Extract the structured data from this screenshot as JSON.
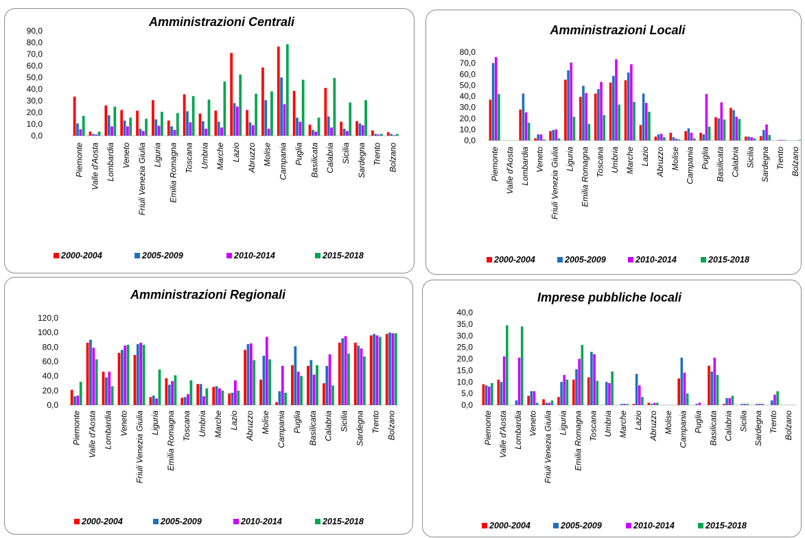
{
  "legend_labels": [
    "2000-2004",
    "2005-2009",
    "2010-2014",
    "2015-2018"
  ],
  "colors": [
    "#ff0000",
    "#1f6fbf",
    "#cc00ff",
    "#00a651"
  ],
  "chart_data": [
    {
      "type": "bar",
      "title": "Amministrazioni Centrali",
      "ylim": [
        0,
        90
      ],
      "yticks": [
        "0,0",
        "10,0",
        "20,0",
        "30,0",
        "40,0",
        "50,0",
        "60,0",
        "70,0",
        "80,0",
        "90,0"
      ],
      "grid": false,
      "legend_position": "bottom",
      "categories": [
        "Piemonte",
        "Valle d'Aosta",
        "Lombardia",
        "Veneto",
        "Friuli Venezia Giulia",
        "Liguria",
        "Emilia Romagna",
        "Toscana",
        "Umbria",
        "Marche",
        "Lazio",
        "Abruzzo",
        "Molise",
        "Campania",
        "Puglia",
        "Basilicata",
        "Calabria",
        "Sicilia",
        "Sardegna",
        "Trento",
        "Bolzano"
      ],
      "series": [
        {
          "name": "2000-2004",
          "values": [
            33.5,
            3.5,
            26,
            22,
            21.5,
            30.5,
            13,
            35.5,
            19,
            21.5,
            71,
            22,
            58.5,
            76.5,
            38.5,
            9.5,
            41,
            12,
            12.5,
            4.5,
            3
          ]
        },
        {
          "name": "2005-2009",
          "values": [
            10.5,
            1.5,
            17.5,
            13,
            6,
            14,
            8,
            21,
            12.5,
            12,
            28,
            11.5,
            30.5,
            50,
            15.5,
            5,
            16.5,
            6,
            10.5,
            1.5,
            1.5
          ]
        },
        {
          "name": "2010-2014",
          "values": [
            5.5,
            1,
            8,
            8,
            4,
            8.5,
            5,
            11.5,
            6,
            7,
            25,
            9,
            6,
            27,
            12,
            3.5,
            7,
            4,
            9,
            1,
            0.5
          ]
        },
        {
          "name": "2015-2018",
          "values": [
            17,
            3.5,
            25,
            15.5,
            14.5,
            20.5,
            19.5,
            34,
            31,
            46.5,
            52.5,
            36,
            38,
            78.5,
            48,
            15.5,
            49.5,
            28.5,
            30.5,
            1.5,
            1.5
          ]
        }
      ]
    },
    {
      "type": "bar",
      "title": "Amministrazioni Locali",
      "ylim": [
        0,
        80
      ],
      "yticks": [
        "0,0",
        "10,0",
        "20,0",
        "30,0",
        "40,0",
        "50,0",
        "60,0",
        "70,0",
        "80,0"
      ],
      "grid": false,
      "legend_position": "bottom",
      "categories": [
        "Piemonte",
        "Valle d'Aosta",
        "Lombardia",
        "Veneto",
        "Friuli Venezia Giulia",
        "Liguria",
        "Emilia Romagna",
        "Toscana",
        "Umbria",
        "Marche",
        "Lazio",
        "Abruzzo",
        "Molise",
        "Campania",
        "Puglia",
        "Basilicata",
        "Calabria",
        "Sicilia",
        "Sardegna",
        "Trento",
        "Bolzano"
      ],
      "series": [
        {
          "name": "2000-2004",
          "values": [
            37,
            0,
            28,
            2,
            8.5,
            55,
            39.5,
            42.5,
            52.5,
            54.5,
            14,
            3.5,
            7,
            8.5,
            7,
            21,
            29.5,
            3.5,
            4,
            0,
            0
          ]
        },
        {
          "name": "2005-2009",
          "values": [
            70,
            0,
            42.5,
            5.5,
            9.5,
            63.5,
            49.5,
            46.5,
            58.5,
            61.5,
            42.5,
            5.5,
            3,
            11,
            5.5,
            20,
            27.5,
            3.5,
            9.5,
            0.5,
            0
          ]
        },
        {
          "name": "2010-2014",
          "values": [
            75.5,
            0,
            25.5,
            5.5,
            10,
            70.5,
            43,
            53,
            73.5,
            69,
            34,
            6,
            1.5,
            7,
            42,
            34.5,
            21.5,
            3,
            14.5,
            0.5,
            0
          ]
        },
        {
          "name": "2015-2018",
          "values": [
            42,
            0,
            16,
            1,
            2,
            21.5,
            15,
            23,
            32.5,
            35,
            26,
            3,
            1,
            2,
            12.5,
            19,
            19.5,
            2,
            5,
            0.5,
            0.5
          ]
        }
      ]
    },
    {
      "type": "bar",
      "title": "Amministrazioni Regionali",
      "ylim": [
        0,
        120
      ],
      "yticks": [
        "0,0",
        "20,0",
        "40,0",
        "60,0",
        "80,0",
        "100,0",
        "120,0"
      ],
      "grid": false,
      "legend_position": "bottom",
      "categories": [
        "Piemonte",
        "Valle d'Aosta",
        "Lombardia",
        "Veneto",
        "Friuli Venezia Giulia",
        "Liguria",
        "Emilia Romagna",
        "Toscana",
        "Umbria",
        "Marche",
        "Lazio",
        "Abruzzo",
        "Molise",
        "Campania",
        "Puglia",
        "Basilicata",
        "Calabria",
        "Sicilia",
        "Sardegna",
        "Trento",
        "Bolzano"
      ],
      "series": [
        {
          "name": "2000-2004",
          "values": [
            21,
            86,
            46,
            72,
            69,
            11,
            37,
            10,
            29,
            25,
            16,
            76,
            35,
            4,
            55,
            54,
            30,
            86,
            86,
            96,
            98
          ]
        },
        {
          "name": "2005-2009",
          "values": [
            12,
            90,
            38,
            76,
            84,
            13,
            28,
            11,
            29,
            26,
            17,
            84,
            68,
            19,
            81,
            62,
            54,
            92,
            82,
            98,
            100
          ]
        },
        {
          "name": "2010-2014",
          "values": [
            13,
            79,
            46,
            82,
            86,
            9,
            33,
            15,
            12,
            23,
            34,
            85,
            94,
            54,
            46,
            42,
            70,
            95,
            78,
            96,
            99
          ]
        },
        {
          "name": "2015-2018",
          "values": [
            32,
            63,
            26,
            83,
            83,
            49,
            41,
            34,
            23,
            20,
            20,
            62,
            63,
            17,
            40,
            55,
            27,
            71,
            67,
            94,
            99
          ]
        }
      ]
    },
    {
      "type": "bar",
      "title": "Imprese pubbliche locali",
      "ylim": [
        0,
        40
      ],
      "yticks": [
        "0,0",
        "5,0",
        "10,0",
        "15,0",
        "20,0",
        "25,0",
        "30,0",
        "35,0",
        "40,0"
      ],
      "grid": false,
      "legend_position": "bottom",
      "categories": [
        "Piemonte",
        "Valle d'Aosta",
        "Lombardia",
        "Veneto",
        "Friuli Venezia Giulia",
        "Liguria",
        "Emilia Romagna",
        "Toscana",
        "Umbria",
        "Marche",
        "Lazio",
        "Abruzzo",
        "Molise",
        "Campania",
        "Puglia",
        "Basilicata",
        "Calabria",
        "Sicilia",
        "Sardegna",
        "Trento",
        "Bolzano"
      ],
      "series": [
        {
          "name": "2000-2004",
          "values": [
            9,
            11,
            0,
            4,
            2.5,
            3.5,
            11,
            12,
            0,
            0,
            0.5,
            1,
            0,
            11.5,
            0,
            17,
            0.5,
            0,
            0,
            0,
            0
          ]
        },
        {
          "name": "2005-2009",
          "values": [
            8.5,
            10,
            2,
            6,
            1,
            10,
            15.5,
            23,
            10,
            0.5,
            13.5,
            0.5,
            0,
            20.5,
            0.5,
            14.5,
            3,
            0.5,
            0.5,
            2,
            0
          ]
        },
        {
          "name": "2010-2014",
          "values": [
            8,
            21,
            20.5,
            6,
            1,
            13,
            20,
            22,
            9.5,
            0.5,
            8.5,
            1,
            0,
            14,
            1,
            20.5,
            3,
            0.5,
            0.5,
            4.5,
            0
          ]
        },
        {
          "name": "2015-2018",
          "values": [
            9.5,
            34.5,
            34,
            1,
            2,
            11,
            26,
            10.5,
            14.5,
            0.5,
            3.5,
            1,
            0,
            5,
            0,
            13,
            4,
            0.5,
            0.5,
            6,
            0
          ]
        }
      ]
    }
  ]
}
